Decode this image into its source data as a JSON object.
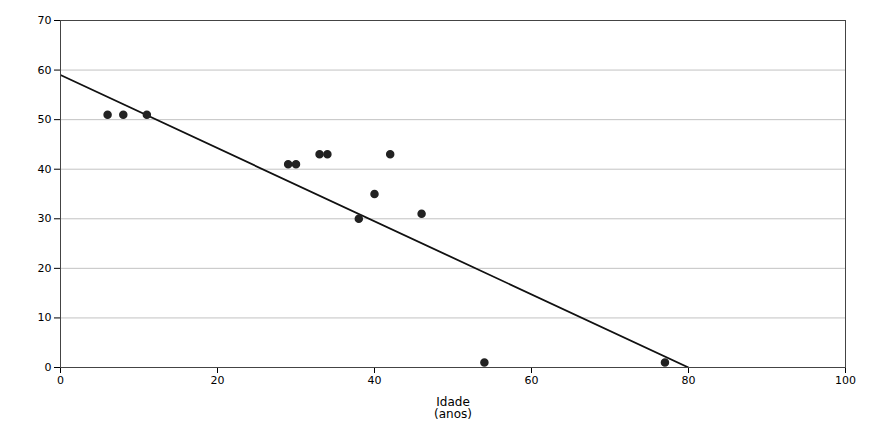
{
  "chart_data": {
    "type": "scatter",
    "xlabel": "Idade\n(anos)",
    "series": [
      {
        "type": "line",
        "x": [
          0,
          80
        ],
        "values": [
          59,
          0
        ],
        "color": "#111111",
        "line_style": "solid"
      },
      {
        "type": "scatter",
        "x": [
          6,
          8,
          11,
          29,
          30,
          33,
          34,
          38,
          40,
          42,
          46,
          54,
          77
        ],
        "values": [
          51,
          51,
          51,
          41,
          41,
          43,
          43,
          30,
          35,
          43,
          31,
          1,
          1
        ],
        "color": "#222222",
        "marker": "circle"
      }
    ],
    "xlim": [
      0,
      100
    ],
    "ylim": [
      0,
      70
    ],
    "xticks": [
      0,
      20,
      40,
      60,
      80,
      100
    ],
    "yticks": [
      0,
      10,
      20,
      30,
      40,
      50,
      60,
      70
    ],
    "grid": "y"
  }
}
